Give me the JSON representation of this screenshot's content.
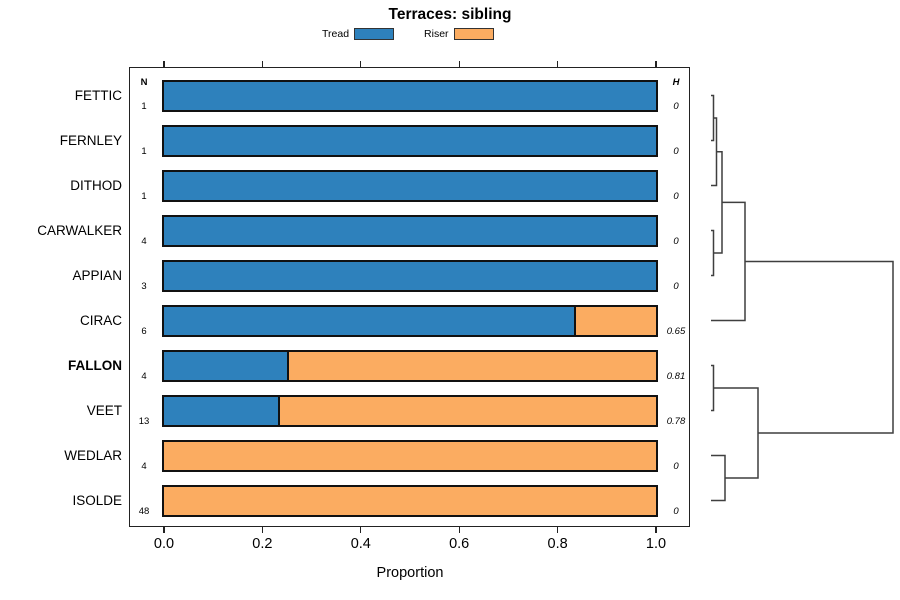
{
  "title": "Terraces: sibling",
  "columns": {
    "n_header": "N",
    "h_header": "H"
  },
  "colors": {
    "tread": "#2e81bc",
    "riser": "#fbac61",
    "bar_border": "#111111",
    "frame": "#222222",
    "dendrogram_line": "#3f3f3f",
    "text": "#000000"
  },
  "chart_data": {
    "type": "bar",
    "orientation": "horizontal",
    "stacked": true,
    "title": "Terraces: sibling",
    "xlabel": "Proportion",
    "xlim": [
      0.0,
      1.0
    ],
    "xticks": [
      0.0,
      0.2,
      0.4,
      0.6,
      0.8,
      1.0
    ],
    "xtick_labels": [
      "0.0",
      "0.2",
      "0.4",
      "0.6",
      "0.8",
      "1.0"
    ],
    "legend_position": "top",
    "grid": false,
    "categories": [
      "FETTIC",
      "FERNLEY",
      "DITHOD",
      "CARWALKER",
      "APPIAN",
      "CIRAC",
      "FALLON",
      "VEET",
      "WEDLAR",
      "ISOLDE"
    ],
    "bold_categories": [
      "FALLON"
    ],
    "series": [
      {
        "name": "Tread",
        "color": "#2e81bc",
        "values": [
          1.0,
          1.0,
          1.0,
          1.0,
          1.0,
          0.833,
          0.25,
          0.231,
          0.0,
          0.0
        ]
      },
      {
        "name": "Riser",
        "color": "#fbac61",
        "values": [
          0.0,
          0.0,
          0.0,
          0.0,
          0.0,
          0.167,
          0.75,
          0.769,
          1.0,
          1.0
        ]
      }
    ],
    "annotations": {
      "N": [
        1,
        1,
        1,
        4,
        3,
        6,
        4,
        13,
        4,
        48
      ],
      "N_display": [
        "1",
        "1",
        "1",
        "4",
        "3",
        "6",
        "4",
        "13",
        "4",
        "48"
      ],
      "H": [
        0,
        0,
        0,
        0,
        0,
        0.65,
        0.81,
        0.78,
        0,
        0
      ],
      "H_display": [
        "0",
        "0",
        "0",
        "0",
        "0",
        "0.65",
        "0.81",
        "0.78",
        "0",
        "0"
      ]
    }
  },
  "dendrogram": {
    "description": "hierarchical clustering tree on right side joining rows",
    "segments": [
      [
        [
          711,
          95.5
        ],
        [
          713.5,
          95.5
        ],
        [
          713.5,
          140.5
        ],
        [
          711,
          140.5
        ]
      ],
      [
        [
          713.5,
          118
        ],
        [
          716.5,
          118
        ],
        [
          716.5,
          185.5
        ],
        [
          711,
          185.5
        ]
      ],
      [
        [
          711,
          230.5
        ],
        [
          713.5,
          230.5
        ],
        [
          713.5,
          275.5
        ],
        [
          711,
          275.5
        ]
      ],
      [
        [
          716.5,
          151.8
        ],
        [
          722,
          151.8
        ],
        [
          722,
          253
        ],
        [
          713.5,
          253
        ]
      ],
      [
        [
          722,
          202.4
        ],
        [
          745,
          202.4
        ],
        [
          745,
          320.5
        ],
        [
          711,
          320.5
        ]
      ],
      [
        [
          711,
          365.5
        ],
        [
          713.5,
          365.5
        ],
        [
          713.5,
          410.5
        ],
        [
          711,
          410.5
        ]
      ],
      [
        [
          711,
          455.5
        ],
        [
          725,
          455.5
        ],
        [
          725,
          500.5
        ],
        [
          711,
          500.5
        ]
      ],
      [
        [
          713.5,
          388
        ],
        [
          758,
          388
        ],
        [
          758,
          478
        ],
        [
          725,
          478
        ]
      ],
      [
        [
          745,
          261.5
        ],
        [
          893,
          261.5
        ],
        [
          893,
          433
        ],
        [
          758,
          433
        ]
      ]
    ]
  }
}
